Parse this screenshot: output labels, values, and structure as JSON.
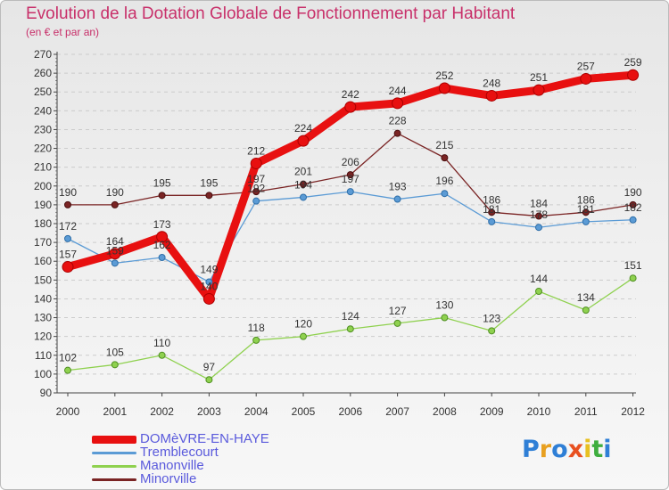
{
  "chart_data": {
    "type": "line",
    "title": "Evolution de la Dotation Globale de Fonctionnement par Habitant",
    "subtitle": "(en € et par an)",
    "xlabel": "",
    "ylabel": "",
    "ylim": [
      90,
      270
    ],
    "yticks": [
      90,
      100,
      110,
      120,
      130,
      140,
      150,
      160,
      170,
      180,
      190,
      200,
      210,
      220,
      230,
      240,
      250,
      260,
      270
    ],
    "categories": [
      "2000",
      "2001",
      "2002",
      "2003",
      "2004",
      "2005",
      "2006",
      "2007",
      "2008",
      "2009",
      "2010",
      "2011",
      "2012"
    ],
    "series": [
      {
        "name": "DOMèVRE-EN-HAYE",
        "color": "#e81010",
        "values": [
          157,
          164,
          173,
          140,
          212,
          224,
          242,
          244,
          252,
          248,
          251,
          257,
          259
        ]
      },
      {
        "name": "Tremblecourt",
        "color": "#5b9bd5",
        "values": [
          172,
          159,
          162,
          149,
          192,
          194,
          197,
          193,
          196,
          181,
          178,
          181,
          182
        ]
      },
      {
        "name": "Manonville",
        "color": "#8fd14f",
        "values": [
          102,
          105,
          110,
          97,
          118,
          120,
          124,
          127,
          130,
          123,
          144,
          134,
          151
        ]
      },
      {
        "name": "Minorville",
        "color": "#7a2424",
        "values": [
          190,
          190,
          195,
          195,
          197,
          201,
          206,
          228,
          215,
          186,
          184,
          186,
          190
        ]
      }
    ],
    "legend_position": "bottom-left"
  },
  "logo": {
    "text": "Proxiti",
    "letters": [
      "P",
      "r",
      "o",
      "x",
      "i",
      "t",
      "i"
    ],
    "colors": [
      "#2f7fd6",
      "#e8a020",
      "#2f7fd6",
      "#e85020",
      "#e8c020",
      "#3fae3f",
      "#2f7fd6"
    ]
  }
}
